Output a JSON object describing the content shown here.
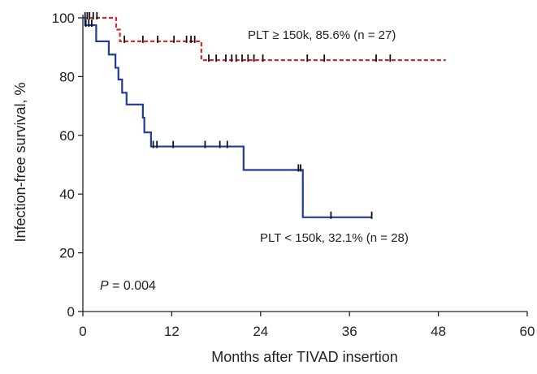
{
  "chart_data": {
    "type": "line",
    "subtype": "kaplan-meier",
    "title": "",
    "xlabel": "Months after TIVAD insertion",
    "ylabel": "Infection-free survival, %",
    "xlim": [
      0,
      60
    ],
    "ylim": [
      0,
      100
    ],
    "xticks": [
      0,
      12,
      24,
      36,
      48,
      60
    ],
    "yticks": [
      0,
      20,
      40,
      60,
      80,
      100
    ],
    "grid": false,
    "annotation_p_italic": "P",
    "annotation_p_value": " = 0.004",
    "series": [
      {
        "name": "PLT ≥ 150k, 85.6% (n = 27)",
        "color": "#d62728",
        "style": "dashed",
        "steps": [
          [
            0,
            100
          ],
          [
            4.5,
            96
          ],
          [
            5,
            92
          ],
          [
            16,
            92
          ],
          [
            16,
            85.6
          ],
          [
            49,
            85.6
          ]
        ],
        "censor_x": [
          0.3,
          0.6,
          0.9,
          1.4,
          1.9,
          5.6,
          8.1,
          10.1,
          12.3,
          14,
          14.6,
          15.1,
          17,
          18,
          19.3,
          20.1,
          20.7,
          21.5,
          22.3,
          23.1,
          24.3,
          30.3,
          32.6,
          39.6,
          41.5
        ]
      },
      {
        "name": "PLT < 150k, 32.1% (n = 28)",
        "color": "#1f3c99",
        "style": "solid",
        "steps": [
          [
            0,
            100
          ],
          [
            0.3,
            97.5
          ],
          [
            1.8,
            92
          ],
          [
            3.5,
            87.5
          ],
          [
            4.4,
            83
          ],
          [
            4.8,
            79
          ],
          [
            5.3,
            74.5
          ],
          [
            5.9,
            70.5
          ],
          [
            8.1,
            66
          ],
          [
            8.3,
            61
          ],
          [
            9.2,
            56.2
          ],
          [
            21.7,
            56.2
          ],
          [
            21.7,
            48.2
          ],
          [
            29.7,
            48.2
          ],
          [
            29.7,
            32.1
          ],
          [
            39,
            32.1
          ]
        ],
        "censor_x": [
          0.4,
          0.8,
          1.2,
          9.5,
          10,
          12.2,
          16.5,
          18.5,
          19.5,
          29.1,
          29.4,
          33.5,
          39
        ]
      }
    ]
  }
}
